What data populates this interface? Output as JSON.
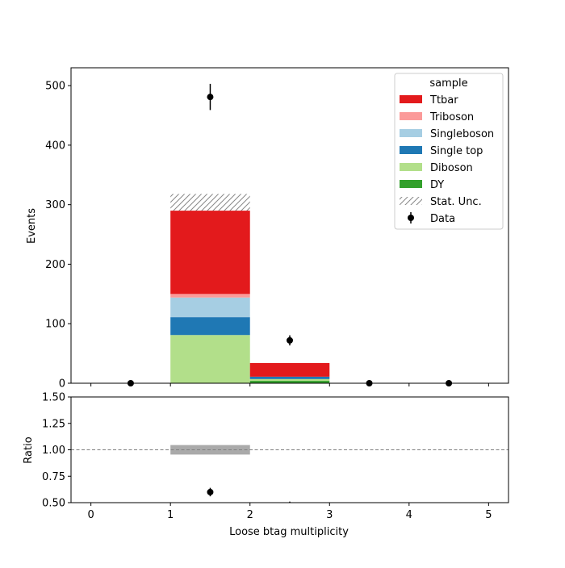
{
  "chart_data": {
    "type": "bar",
    "stacked": true,
    "xlabel": "Loose btag multiplicity",
    "ylabel": "Events",
    "ratio_ylabel": "Ratio",
    "xlim": [
      -0.25,
      5.25
    ],
    "ylim": [
      0,
      530
    ],
    "ratio_ylim": [
      0.5,
      1.5
    ],
    "xticks": [
      "0",
      "1",
      "2",
      "3",
      "4",
      "5"
    ],
    "yticks": [
      "0",
      "100",
      "200",
      "300",
      "400",
      "500"
    ],
    "ratio_yticks": [
      "0.50",
      "0.75",
      "1.00",
      "1.25",
      "1.50"
    ],
    "bins": [
      [
        1,
        2
      ],
      [
        2,
        3
      ]
    ],
    "series": [
      {
        "name": "DY",
        "color": "#33a02c",
        "values": [
          0,
          4
        ]
      },
      {
        "name": "Diboson",
        "color": "#b2df8a",
        "values": [
          81,
          3
        ]
      },
      {
        "name": "Single top",
        "color": "#1f78b4",
        "values": [
          30,
          4
        ]
      },
      {
        "name": "Singleboson",
        "color": "#a6cee3",
        "values": [
          33,
          0
        ]
      },
      {
        "name": "Triboson",
        "color": "#fb9a99",
        "values": [
          6,
          0
        ]
      },
      {
        "name": "Ttbar",
        "color": "#e31a1c",
        "values": [
          140,
          23
        ]
      }
    ],
    "stat_unc": {
      "name": "Stat. Unc.",
      "bins": [
        [
          1,
          2
        ],
        [
          2,
          3
        ]
      ],
      "low": [
        290,
        33
      ],
      "high": [
        318,
        33
      ]
    },
    "data_points": {
      "name": "Data",
      "x": [
        0.5,
        1.5,
        2.5,
        3.5,
        4.5
      ],
      "y": [
        0,
        481,
        72,
        0,
        0
      ],
      "err": [
        0,
        22,
        8.5,
        0,
        0
      ]
    },
    "ratio_band": {
      "bins": [
        [
          1,
          2
        ]
      ],
      "low": [
        0.955
      ],
      "high": [
        1.045
      ]
    },
    "ratio_points": {
      "x": [
        1.5,
        2.5
      ],
      "y": [
        0.6,
        0.5
      ],
      "err": [
        0.04,
        0.01
      ]
    },
    "ratio_reference": 1.0,
    "legend": {
      "title": "sample",
      "placement": "top-right",
      "entries": [
        "Ttbar",
        "Triboson",
        "Singleboson",
        "Single top",
        "Diboson",
        "DY",
        "Stat. Unc.",
        "Data"
      ]
    }
  }
}
